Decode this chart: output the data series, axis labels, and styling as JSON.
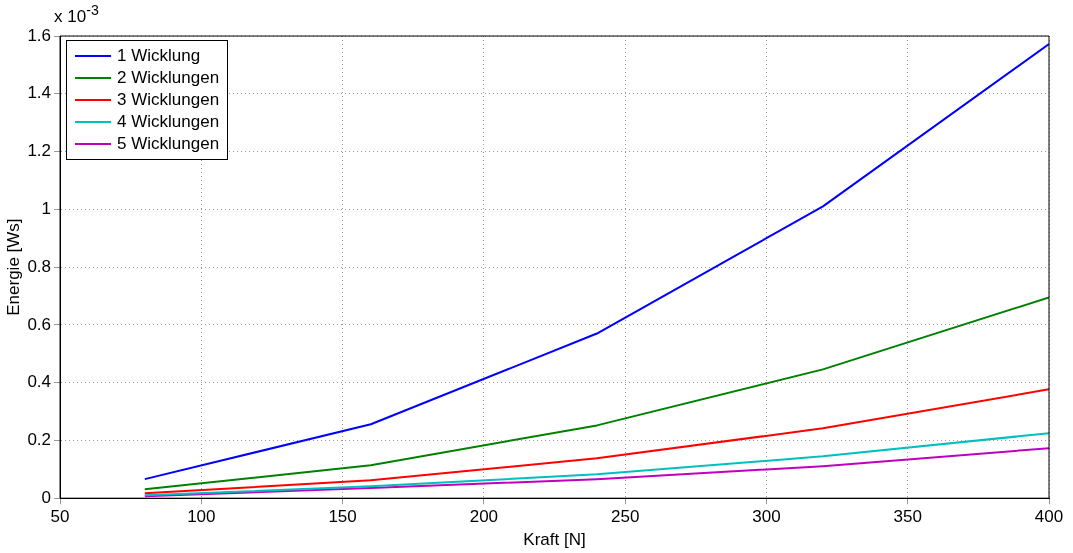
{
  "chart_data": {
    "type": "line",
    "xlabel": "Kraft [N]",
    "ylabel": "Energie [Ws]",
    "annotations": [
      "x 10$^{-3}$"
    ],
    "x": [
      80,
      160,
      240,
      320,
      400
    ],
    "series": [
      {
        "name": "1 Wicklung",
        "color": "#0000ff",
        "values": [
          0.066,
          0.256,
          0.57,
          1.01,
          1.572
        ]
      },
      {
        "name": "2 Wicklungen",
        "color": "#008000",
        "values": [
          0.031,
          0.114,
          0.252,
          0.446,
          0.695
        ]
      },
      {
        "name": "3 Wicklungen",
        "color": "#ff0000",
        "values": [
          0.017,
          0.062,
          0.138,
          0.242,
          0.377
        ]
      },
      {
        "name": "4 Wicklungen",
        "color": "#00bfbf",
        "values": [
          0.01,
          0.041,
          0.083,
          0.145,
          0.225
        ]
      },
      {
        "name": "5 Wicklungen",
        "color": "#bf00bf",
        "values": [
          0.007,
          0.035,
          0.066,
          0.111,
          0.173
        ]
      }
    ],
    "xlim": [
      50,
      400
    ],
    "xticks": [
      50,
      100,
      150,
      200,
      250,
      300,
      350,
      400
    ],
    "ylim": [
      0,
      1.6
    ],
    "yticks": [
      0,
      0.2,
      0.4,
      0.6,
      0.8,
      1,
      1.2,
      1.4,
      1.6
    ],
    "grid": true,
    "legend": "top left",
    "marker": "none",
    "line_style": "solid"
  }
}
